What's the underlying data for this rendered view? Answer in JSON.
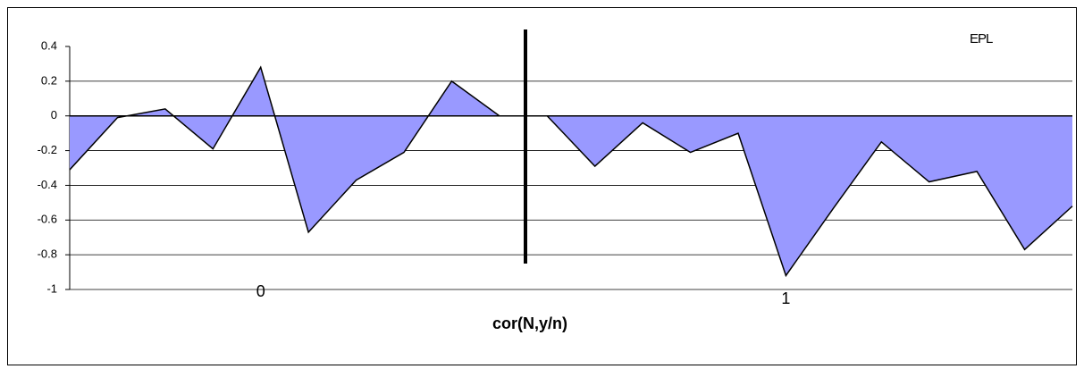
{
  "chart_data": {
    "type": "area",
    "x_label": "cor(N,y/n)",
    "categories": [
      null,
      null,
      null,
      null,
      "0",
      null,
      null,
      null,
      null,
      null,
      null,
      null,
      null,
      null,
      null,
      "1",
      null,
      null,
      null,
      null,
      null,
      null
    ],
    "series": [
      {
        "name": "EPL",
        "color": "#9999ff",
        "values": [
          -0.31,
          -0.01,
          0.04,
          -0.19,
          0.28,
          -0.67,
          -0.37,
          -0.21,
          0.2,
          0,
          0,
          -0.29,
          -0.04,
          -0.21,
          -0.1,
          -0.92,
          -0.53,
          -0.15,
          -0.38,
          -0.32,
          -0.77,
          -0.52
        ]
      }
    ],
    "ylim": [
      -1,
      0.4
    ],
    "yticks": [
      0.4,
      0.2,
      0,
      -0.2,
      -0.4,
      -0.6,
      -0.8,
      -1
    ],
    "grid": true,
    "legend": "top-right"
  }
}
